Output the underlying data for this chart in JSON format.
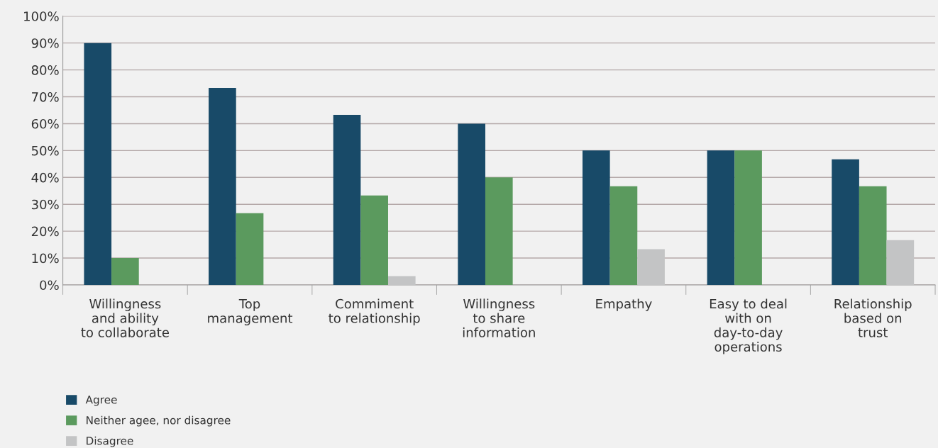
{
  "chart_data": {
    "type": "bar",
    "categories": [
      "Willingness\nand ability\nto collaborate",
      "Top\nmanagement",
      "Commiment\nto relationship",
      "Willingness\nto share\ninformation",
      "Empathy",
      "Easy to deal\nwith on\nday-to-day\noperations",
      "Relationship\nbased on\ntrust"
    ],
    "series": [
      {
        "name": "Agree",
        "color": "#184a68",
        "values": [
          90,
          73.3,
          63.3,
          60,
          50,
          50,
          46.7
        ]
      },
      {
        "name": "Neither agee, nor disagree",
        "color": "#5b9a5e",
        "values": [
          10,
          26.7,
          33.3,
          40,
          36.7,
          50,
          36.7
        ]
      },
      {
        "name": "Disagree",
        "color": "#c3c4c5",
        "values": [
          0,
          0,
          3.3,
          0,
          13.3,
          0,
          16.7
        ]
      }
    ],
    "ylim": [
      0,
      100
    ],
    "yticks": [
      {
        "value": 0,
        "label": "0%"
      },
      {
        "value": 10,
        "label": "10%"
      },
      {
        "value": 20,
        "label": "20%"
      },
      {
        "value": 30,
        "label": "30%"
      },
      {
        "value": 40,
        "label": "40%"
      },
      {
        "value": 50,
        "label": "50%"
      },
      {
        "value": 60,
        "label": "60%"
      },
      {
        "value": 70,
        "label": "70%"
      },
      {
        "value": 80,
        "label": "80%"
      },
      {
        "value": 90,
        "label": "90%"
      },
      {
        "value": 100,
        "label": "100%"
      }
    ],
    "grid": "y",
    "legend": "bottom left"
  }
}
